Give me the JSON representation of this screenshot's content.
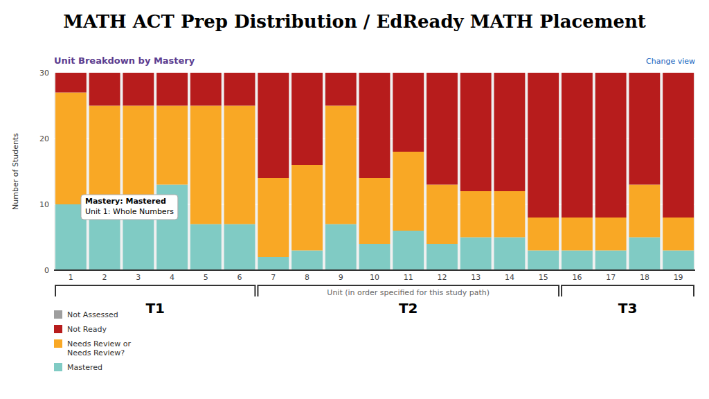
{
  "chart_data": {
    "type": "bar",
    "stacked": true,
    "title": "MATH ACT Prep Distribution  / EdReady MATH Placement",
    "subtitle": "Unit Breakdown by Mastery",
    "xlabel": "Unit (in order specified for this study path)",
    "ylabel": "Number of Students",
    "link_text": "Change view",
    "categories": [
      1,
      2,
      3,
      4,
      5,
      6,
      7,
      8,
      9,
      10,
      11,
      12,
      13,
      14,
      15,
      16,
      17,
      18,
      19
    ],
    "series": [
      {
        "name": "Mastered",
        "color": "#80cbc4",
        "values": [
          10,
          8,
          9,
          13,
          7,
          7,
          2,
          3,
          7,
          4,
          6,
          4,
          5,
          5,
          3,
          3,
          3,
          5,
          3
        ]
      },
      {
        "name": "Needs Review  or\nNeeds Review?",
        "color": "#f9a825",
        "values": [
          17,
          17,
          16,
          12,
          18,
          18,
          12,
          13,
          18,
          10,
          12,
          9,
          7,
          7,
          5,
          5,
          5,
          8,
          5
        ]
      },
      {
        "name": "Not Ready",
        "color": "#b71c1c",
        "values": [
          3,
          5,
          5,
          5,
          5,
          5,
          16,
          14,
          5,
          16,
          12,
          17,
          18,
          18,
          22,
          22,
          22,
          17,
          22
        ]
      },
      {
        "name": "Not Assessed",
        "color": "#9e9e9e",
        "values": [
          0,
          0,
          0,
          0,
          0,
          0,
          0,
          0,
          0,
          0,
          0,
          0,
          0,
          0,
          0,
          0,
          0,
          0,
          0
        ]
      }
    ],
    "ylim": [
      0,
      30
    ],
    "yticks": [
      0,
      10,
      20,
      30
    ],
    "grid": true,
    "legend": "bottom",
    "groups": [
      {
        "label": "T1",
        "first": 1,
        "last": 6
      },
      {
        "label": "T2",
        "first": 7,
        "last": 15
      },
      {
        "label": "T3",
        "first": 16,
        "last": 19
      }
    ],
    "annotations": [
      "Mastery: Mastered",
      "Unit 1: Whole Numbers"
    ]
  }
}
